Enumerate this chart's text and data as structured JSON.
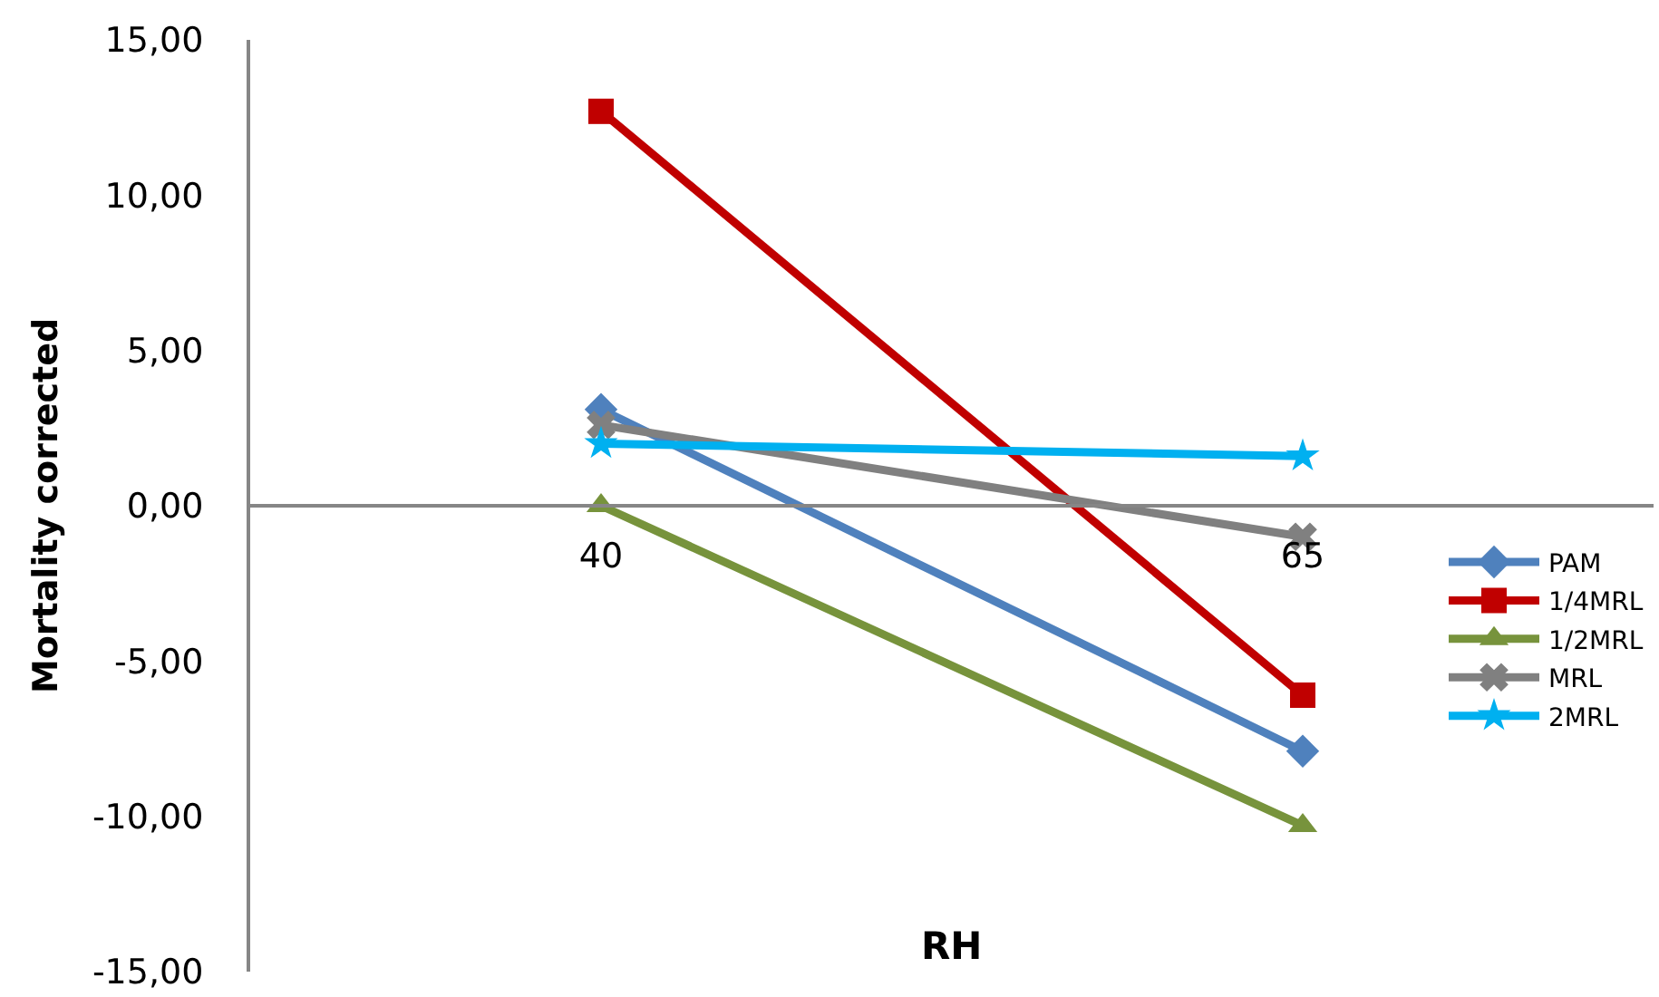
{
  "chart_data": {
    "type": "line",
    "xlabel": "RH",
    "ylabel": "Mortality corrected",
    "x": [
      40,
      65
    ],
    "xlim": [
      27.5,
      77.5
    ],
    "xticks": [
      40,
      65
    ],
    "series": [
      {
        "name": "PAM",
        "color": "#4f81bd",
        "marker": "diamond",
        "values": [
          3.1,
          -7.9
        ]
      },
      {
        "name": "1/4MRL",
        "color": "#c00000",
        "marker": "square",
        "values": [
          12.7,
          -6.1
        ]
      },
      {
        "name": "1/2MRL",
        "color": "#77933c",
        "marker": "triangle",
        "values": [
          0.0,
          -10.3
        ]
      },
      {
        "name": "MRL",
        "color": "#808080",
        "marker": "cross",
        "values": [
          2.6,
          -1.0
        ]
      },
      {
        "name": "2MRL",
        "color": "#00b0f0",
        "marker": "star",
        "values": [
          2.0,
          1.6
        ]
      }
    ],
    "ylim": [
      -15,
      15
    ],
    "yticks": [
      {
        "value": -15,
        "label": "-15,00"
      },
      {
        "value": -10,
        "label": "-10,00"
      },
      {
        "value": -5,
        "label": "-5,00"
      },
      {
        "value": 0,
        "label": "0,00"
      },
      {
        "value": 5,
        "label": "5,00"
      },
      {
        "value": 10,
        "label": "10,00"
      },
      {
        "value": 15,
        "label": "15,00"
      }
    ],
    "grid": false,
    "legend": "right"
  }
}
